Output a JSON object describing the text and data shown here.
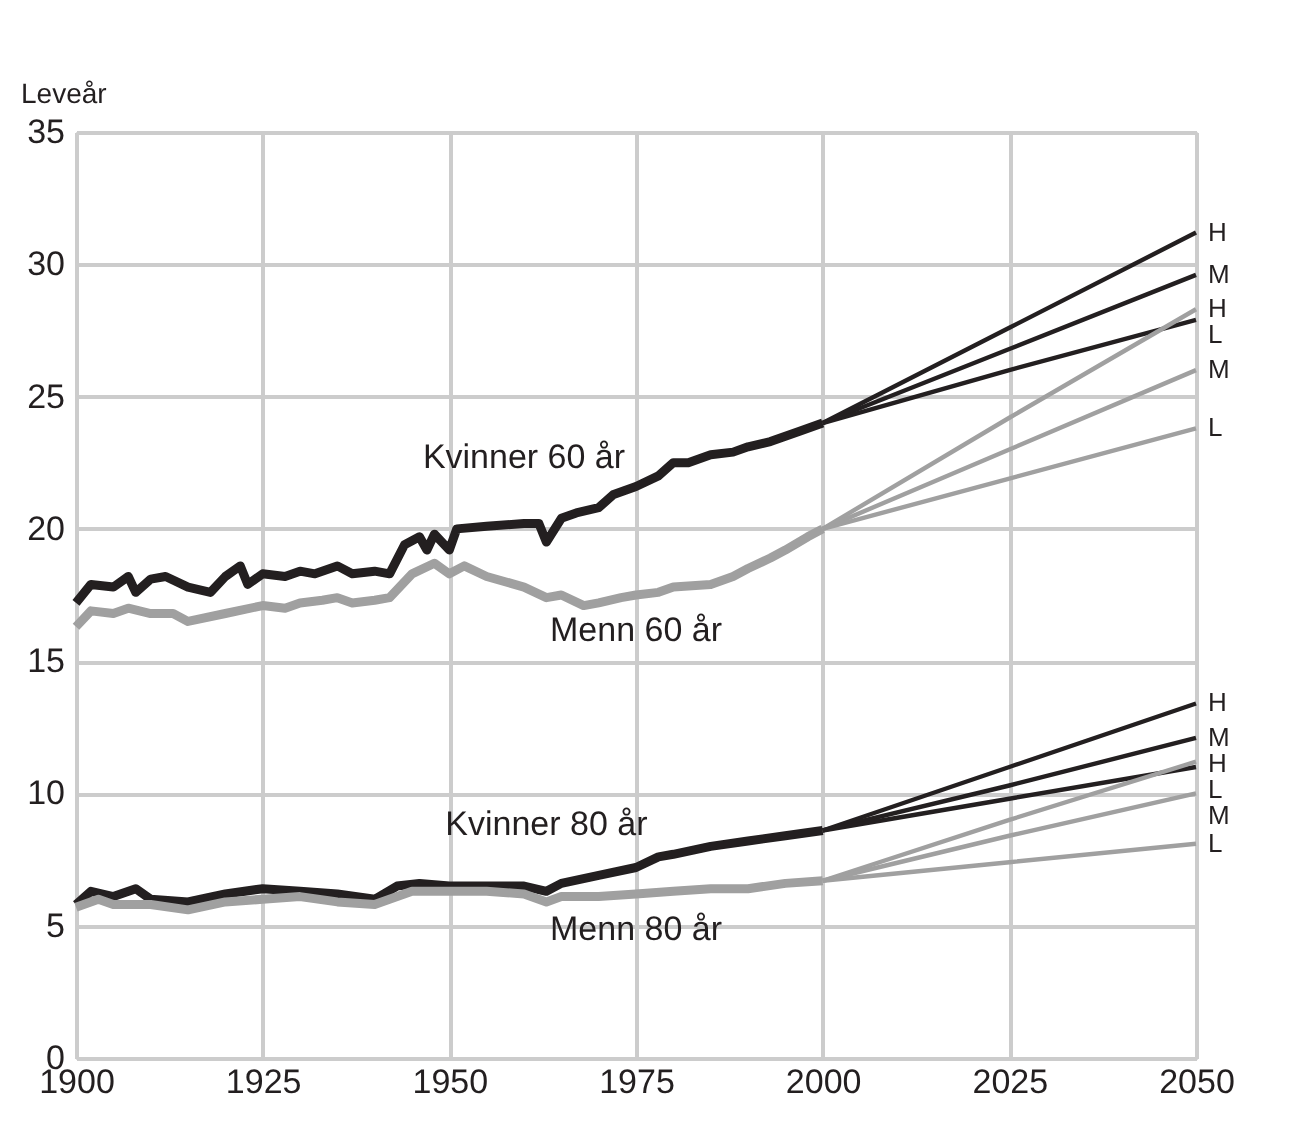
{
  "chart_data": {
    "type": "line",
    "ylabel": "Leveår",
    "xlim": [
      1900,
      2050
    ],
    "xticks": [
      1900,
      1925,
      1950,
      1975,
      2000,
      2025,
      2050
    ],
    "ylim": [
      0,
      35
    ],
    "yticks": [
      0,
      5,
      10,
      15,
      20,
      25,
      30,
      35
    ],
    "grid": true,
    "marker": "none",
    "line_style": "solid",
    "series": [
      {
        "color": "#231f20",
        "x": [
          1900,
          1902,
          1905,
          1907,
          1908,
          1910,
          1912,
          1915,
          1918,
          1920,
          1922,
          1923,
          1925,
          1928,
          1930,
          1932,
          1935,
          1937,
          1940,
          1942,
          1944,
          1946,
          1947,
          1948,
          1950,
          1951,
          1955,
          1960,
          1962,
          1963,
          1965,
          1967,
          1970,
          1972,
          1975,
          1978,
          1980,
          1982,
          1985,
          1988,
          1990,
          1993,
          1995,
          1997,
          2000
        ],
        "values": [
          17.2,
          17.9,
          17.8,
          18.2,
          17.6,
          18.1,
          18.2,
          17.8,
          17.6,
          18.2,
          18.6,
          17.9,
          18.3,
          18.2,
          18.4,
          18.3,
          18.6,
          18.3,
          18.4,
          18.3,
          19.4,
          19.7,
          19.2,
          19.8,
          19.2,
          20.0,
          20.1,
          20.2,
          20.2,
          19.5,
          20.4,
          20.6,
          20.8,
          21.3,
          21.6,
          22.0,
          22.5,
          22.5,
          22.8,
          22.9,
          23.1,
          23.3,
          23.5,
          23.7,
          24.0
        ]
      },
      {
        "color": "#a0a0a0",
        "x": [
          1900,
          1902,
          1905,
          1907,
          1910,
          1913,
          1915,
          1920,
          1925,
          1928,
          1930,
          1933,
          1935,
          1937,
          1940,
          1942,
          1945,
          1948,
          1950,
          1952,
          1955,
          1960,
          1963,
          1965,
          1968,
          1970,
          1973,
          1975,
          1978,
          1980,
          1985,
          1988,
          1990,
          1993,
          1995,
          1998,
          2000
        ],
        "values": [
          16.3,
          16.9,
          16.8,
          17.0,
          16.8,
          16.8,
          16.5,
          16.8,
          17.1,
          17.0,
          17.2,
          17.3,
          17.4,
          17.2,
          17.3,
          17.4,
          18.3,
          18.7,
          18.3,
          18.6,
          18.2,
          17.8,
          17.4,
          17.5,
          17.1,
          17.2,
          17.4,
          17.5,
          17.6,
          17.8,
          17.9,
          18.2,
          18.5,
          18.9,
          19.2,
          19.7,
          20.0
        ]
      },
      {
        "color": "#231f20",
        "x": [
          1900,
          1902,
          1905,
          1908,
          1910,
          1915,
          1920,
          1925,
          1930,
          1935,
          1940,
          1943,
          1946,
          1950,
          1955,
          1960,
          1963,
          1965,
          1970,
          1975,
          1978,
          1980,
          1985,
          1990,
          1995,
          2000
        ],
        "values": [
          5.8,
          6.3,
          6.1,
          6.4,
          6.0,
          5.9,
          6.2,
          6.4,
          6.3,
          6.2,
          6.0,
          6.5,
          6.6,
          6.5,
          6.5,
          6.5,
          6.3,
          6.6,
          6.9,
          7.2,
          7.6,
          7.7,
          8.0,
          8.2,
          8.4,
          8.6
        ]
      },
      {
        "color": "#a0a0a0",
        "x": [
          1900,
          1903,
          1905,
          1910,
          1915,
          1920,
          1925,
          1930,
          1935,
          1940,
          1945,
          1950,
          1955,
          1960,
          1963,
          1965,
          1970,
          1975,
          1980,
          1985,
          1990,
          1995,
          2000
        ],
        "values": [
          5.7,
          6.0,
          5.8,
          5.8,
          5.6,
          5.9,
          6.0,
          6.1,
          5.9,
          5.8,
          6.3,
          6.3,
          6.3,
          6.2,
          5.9,
          6.1,
          6.1,
          6.2,
          6.3,
          6.4,
          6.4,
          6.6,
          6.7
        ]
      },
      {
        "name": "H",
        "color": "#231f20",
        "x": [
          2000,
          2025,
          2050
        ],
        "values": [
          24.0,
          27.6,
          31.2
        ]
      },
      {
        "name": "M",
        "color": "#231f20",
        "x": [
          2000,
          2025,
          2050
        ],
        "values": [
          24.0,
          26.8,
          29.6
        ]
      },
      {
        "name": "L",
        "color": "#231f20",
        "x": [
          2000,
          2025,
          2050
        ],
        "values": [
          24.0,
          26.0,
          27.9
        ]
      },
      {
        "name": "H",
        "color": "#a0a0a0",
        "x": [
          2000,
          2025,
          2050
        ],
        "values": [
          20.0,
          24.2,
          28.3
        ]
      },
      {
        "name": "M",
        "color": "#a0a0a0",
        "x": [
          2000,
          2025,
          2050
        ],
        "values": [
          20.0,
          23.0,
          26.0
        ]
      },
      {
        "name": "L",
        "color": "#a0a0a0",
        "x": [
          2000,
          2025,
          2050
        ],
        "values": [
          20.0,
          21.9,
          23.8
        ]
      },
      {
        "name": "H",
        "color": "#231f20",
        "x": [
          2000,
          2025,
          2050
        ],
        "values": [
          8.6,
          11.0,
          13.4
        ]
      },
      {
        "name": "M",
        "color": "#231f20",
        "x": [
          2000,
          2025,
          2050
        ],
        "values": [
          8.6,
          10.3,
          12.1
        ]
      },
      {
        "name": "L",
        "color": "#231f20",
        "x": [
          2000,
          2025,
          2050
        ],
        "values": [
          8.6,
          9.8,
          11.0
        ]
      },
      {
        "name": "H",
        "color": "#a0a0a0",
        "x": [
          2000,
          2025,
          2050
        ],
        "values": [
          6.7,
          9.0,
          11.2
        ]
      },
      {
        "name": "M",
        "color": "#a0a0a0",
        "x": [
          2000,
          2025,
          2050
        ],
        "values": [
          6.7,
          8.4,
          10.0
        ]
      },
      {
        "name": "L",
        "color": "#a0a0a0",
        "x": [
          2000,
          2025,
          2050
        ],
        "values": [
          6.7,
          7.4,
          8.1
        ]
      }
    ],
    "annotations": [
      {
        "text": "Kvinner 60 år",
        "x": 1960,
        "y": 20.2
      },
      {
        "text": "Menn 60 år",
        "x": 1975,
        "y": 17.5
      },
      {
        "text": "Kvinner 80 år",
        "x": 1963,
        "y": 6.3
      },
      {
        "text": "Menn 80 år",
        "x": 1975,
        "y": 6.2
      }
    ]
  }
}
